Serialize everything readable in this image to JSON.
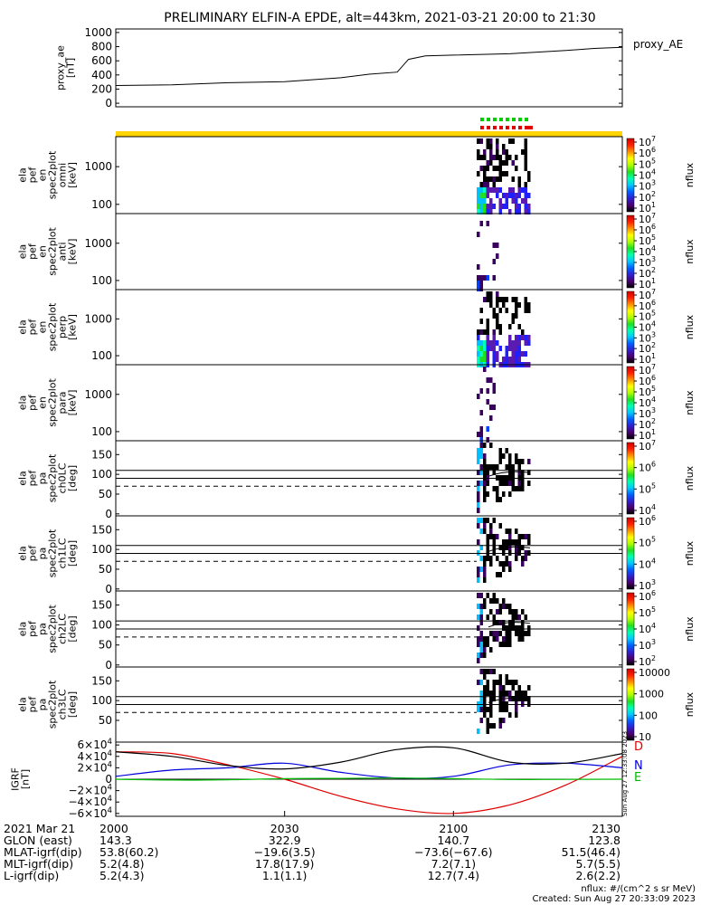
{
  "title": "PRELIMINARY ELFIN-A EPDE, alt=443km, 2021-03-21 20:00 to 21:30",
  "chart_data": [
    {
      "type": "line",
      "id": "proxy_ae",
      "ylabel": [
        "proxy_ae",
        "[nT]"
      ],
      "series_label": "proxy_AE",
      "yticks": [
        "1000",
        "800",
        "600",
        "400",
        "200",
        "0"
      ],
      "ylim": [
        -50,
        1050
      ],
      "x_minutes": [
        0,
        10,
        20,
        30,
        40,
        45,
        50,
        52,
        55,
        60,
        70,
        80,
        85,
        90
      ],
      "values": [
        250,
        260,
        290,
        305,
        360,
        410,
        440,
        620,
        670,
        680,
        700,
        745,
        775,
        790
      ]
    },
    {
      "type": "heatmap",
      "id": "pef-en-omni",
      "ylabel": [
        "ela",
        "pef",
        "en",
        "spec2plot",
        "omni",
        "[keV]"
      ],
      "yticks": [
        "1000",
        "100"
      ],
      "cbar_ticks": [
        "10^7",
        "10^6",
        "10^5",
        "10^4",
        "10^3",
        "10^2",
        "10^1"
      ],
      "cbar_label": "nflux"
    },
    {
      "type": "heatmap",
      "id": "pef-en-anti",
      "ylabel": [
        "ela",
        "pef",
        "en",
        "spec2plot",
        "anti",
        "[keV]"
      ],
      "yticks": [
        "1000",
        "100"
      ],
      "cbar_ticks": [
        "10^7",
        "10^6",
        "10^5",
        "10^4",
        "10^3",
        "10^2",
        "10^1"
      ],
      "cbar_label": "nflux"
    },
    {
      "type": "heatmap",
      "id": "pef-en-perp",
      "ylabel": [
        "ela",
        "pef",
        "en",
        "spec2plot",
        "perp",
        "[keV]"
      ],
      "yticks": [
        "1000",
        "100"
      ],
      "cbar_ticks": [
        "10^7",
        "10^6",
        "10^5",
        "10^4",
        "10^3",
        "10^2",
        "10^1"
      ],
      "cbar_label": "nflux"
    },
    {
      "type": "heatmap",
      "id": "pef-en-para",
      "ylabel": [
        "ela",
        "pef",
        "en",
        "spec2plot",
        "para",
        "[keV]"
      ],
      "yticks": [
        "1000",
        "100"
      ],
      "cbar_ticks": [
        "10^7",
        "10^6",
        "10^5",
        "10^4",
        "10^3",
        "10^2",
        "10^1"
      ],
      "cbar_label": "nflux"
    },
    {
      "type": "heatmap",
      "id": "pef-pa-ch0",
      "ylabel": [
        "ela",
        "pef",
        "pa",
        "spec2plot",
        "ch0LC",
        "[deg]"
      ],
      "yticks": [
        "150",
        "100",
        "50",
        "0"
      ],
      "cbar_ticks": [
        "10^7",
        "10^6",
        "10^5",
        "10^4"
      ],
      "cbar_label": "nflux"
    },
    {
      "type": "heatmap",
      "id": "pef-pa-ch1",
      "ylabel": [
        "ela",
        "pef",
        "pa",
        "spec2plot",
        "ch1LC",
        "[deg]"
      ],
      "yticks": [
        "150",
        "100",
        "50",
        "0"
      ],
      "cbar_ticks": [
        "10^6",
        "10^5",
        "10^4",
        "10^3"
      ],
      "cbar_label": "nflux"
    },
    {
      "type": "heatmap",
      "id": "pef-pa-ch2",
      "ylabel": [
        "ela",
        "pef",
        "pa",
        "spec2plot",
        "ch2LC",
        "[deg]"
      ],
      "yticks": [
        "150",
        "100",
        "50",
        "0"
      ],
      "cbar_ticks": [
        "10^6",
        "10^5",
        "10^4",
        "10^3",
        "10^2"
      ],
      "cbar_label": "nflux"
    },
    {
      "type": "heatmap",
      "id": "pef-pa-ch3",
      "ylabel": [
        "ela",
        "pef",
        "pa",
        "spec2plot",
        "ch3LC",
        "[deg]"
      ],
      "yticks": [
        "150",
        "100",
        "50"
      ],
      "cbar_ticks": [
        "10000",
        "1000",
        "100",
        "10"
      ],
      "cbar_label": "nflux"
    },
    {
      "type": "line",
      "id": "igrf",
      "ylabel": [
        "IGRF",
        "[nT]"
      ],
      "yticks": [
        "6×10^4",
        "4×10^4",
        "2×10^4",
        "0",
        "−2×10^4",
        "−4×10^4",
        "−6×10^4"
      ],
      "ylim": [
        -65000,
        65000
      ],
      "x_minutes": [
        0,
        10,
        20,
        30,
        40,
        50,
        60,
        70,
        80,
        90
      ],
      "series": [
        {
          "name": "D",
          "color": "#e00000",
          "values": [
            48000,
            45000,
            25000,
            0,
            -30000,
            -52000,
            -60000,
            -45000,
            -10000,
            40000
          ]
        },
        {
          "name": "N",
          "color": "#0000dd",
          "values": [
            5000,
            16000,
            20000,
            28000,
            12000,
            2000,
            5000,
            25000,
            28000,
            20000
          ]
        },
        {
          "name": "E",
          "color": "#00bb00",
          "values": [
            0,
            -1500,
            -1000,
            1000,
            1500,
            2000,
            1000,
            -500,
            -300,
            0
          ]
        },
        {
          "name": "",
          "color": "#000000",
          "values": [
            48000,
            40000,
            24000,
            18000,
            30000,
            52000,
            55000,
            30000,
            28000,
            45000
          ]
        }
      ]
    }
  ],
  "side_text": "Sun Aug 27 12:33:08 2023",
  "footer": {
    "rows": [
      {
        "label": "2021 Mar 21",
        "values": [
          "2000",
          "2030",
          "2100",
          "2130"
        ]
      },
      {
        "label": "GLON (east)",
        "values": [
          "143.3",
          "322.9",
          "140.7",
          "123.8"
        ]
      },
      {
        "label": "MLAT-igrf(dip)",
        "values": [
          "53.8(60.2)",
          "−19.6(3.5)",
          "−73.6(−67.6)",
          "51.5(46.4)"
        ]
      },
      {
        "label": "MLT-igrf(dip)",
        "values": [
          "5.2(4.8)",
          "17.8(17.9)",
          "7.2(7.1)",
          "5.7(5.5)"
        ]
      },
      {
        "label": "L-igrf(dip)",
        "values": [
          "5.2(4.3)",
          "1.1(1.1)",
          "12.7(7.4)",
          "2.6(2.2)"
        ]
      }
    ],
    "units_note": "nflux: #/(cm^2 s sr MeV)",
    "created": "Created: Sun Aug 27 20:33:09 2023"
  }
}
